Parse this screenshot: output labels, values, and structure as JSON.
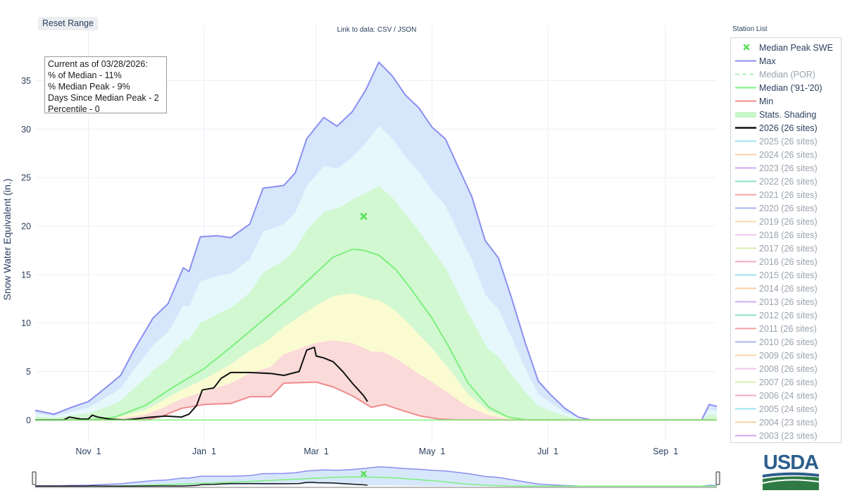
{
  "toolbar": {
    "reset_label": "Reset Range"
  },
  "data_link": "Link to data: CSV / JSON",
  "station_list_label": "Station List",
  "info_box": {
    "lines": [
      "Current as of 03/28/2026:",
      "% of Median - 11%",
      "% Median Peak - 9%",
      "Days Since Median Peak - 2",
      "Percentile - 0"
    ]
  },
  "logo_text": "USDA",
  "colors": {
    "max": "#8c8ef0",
    "median_por": "#b4ecb4",
    "median_9120": "#7cf07c",
    "min": "#f08a8a",
    "current": "#111111",
    "band_blue": "#d6e7fb",
    "band_cyan": "#e6f8fb",
    "band_green": "#d2f8d2",
    "band_yellow": "#fbfbd2",
    "band_red": "#fbdada",
    "peak_marker": "#5ae05a"
  },
  "legend": [
    {
      "label": "Median Peak SWE",
      "type": "marker",
      "color": "#5ae05a",
      "dim": false
    },
    {
      "label": "Max",
      "type": "line",
      "color": "#8c8ef0",
      "dim": false
    },
    {
      "label": "Median (POR)",
      "type": "dash",
      "color": "#b4ecb4",
      "dim": true
    },
    {
      "label": "Median ('91-'20)",
      "type": "line",
      "color": "#7cf07c",
      "dim": false
    },
    {
      "label": "Min",
      "type": "line",
      "color": "#f08a8a",
      "dim": false
    },
    {
      "label": "Stats. Shading",
      "type": "box",
      "color": "#c8f7c8",
      "dim": false
    },
    {
      "label": "2026 (26 sites)",
      "type": "bold",
      "color": "#111111",
      "dim": false
    },
    {
      "label": "2025 (26 sites)",
      "type": "line",
      "color": "#9be3f0",
      "dim": true
    },
    {
      "label": "2024 (26 sites)",
      "type": "line",
      "color": "#f7cfa6",
      "dim": true
    },
    {
      "label": "2023 (26 sites)",
      "type": "line",
      "color": "#d2a9f2",
      "dim": true
    },
    {
      "label": "2022 (26 sites)",
      "type": "line",
      "color": "#8fe0c6",
      "dim": true
    },
    {
      "label": "2021 (26 sites)",
      "type": "line",
      "color": "#f4a3a3",
      "dim": true
    },
    {
      "label": "2020 (26 sites)",
      "type": "line",
      "color": "#aab4ee",
      "dim": true
    },
    {
      "label": "2019 (26 sites)",
      "type": "line",
      "color": "#f7d9a6",
      "dim": true
    },
    {
      "label": "2018 (26 sites)",
      "type": "line",
      "color": "#f2c6ef",
      "dim": true
    },
    {
      "label": "2017 (26 sites)",
      "type": "line",
      "color": "#d9efb0",
      "dim": true
    },
    {
      "label": "2016 (26 sites)",
      "type": "line",
      "color": "#f2a9c8",
      "dim": true
    },
    {
      "label": "2015 (26 sites)",
      "type": "line",
      "color": "#9be3f0",
      "dim": true
    },
    {
      "label": "2014 (26 sites)",
      "type": "line",
      "color": "#f7cfa6",
      "dim": true
    },
    {
      "label": "2013 (26 sites)",
      "type": "line",
      "color": "#d2a9f2",
      "dim": true
    },
    {
      "label": "2012 (26 sites)",
      "type": "line",
      "color": "#8fe0c6",
      "dim": true
    },
    {
      "label": "2011 (26 sites)",
      "type": "line",
      "color": "#f4a3a3",
      "dim": true
    },
    {
      "label": "2010 (26 sites)",
      "type": "line",
      "color": "#aab4ee",
      "dim": true
    },
    {
      "label": "2009 (26 sites)",
      "type": "line",
      "color": "#f7d9a6",
      "dim": true
    },
    {
      "label": "2008 (26 sites)",
      "type": "line",
      "color": "#f2c6ef",
      "dim": true
    },
    {
      "label": "2007 (26 sites)",
      "type": "line",
      "color": "#d9efb0",
      "dim": true
    },
    {
      "label": "2006 (24 sites)",
      "type": "line",
      "color": "#f2a9c8",
      "dim": true
    },
    {
      "label": "2005 (24 sites)",
      "type": "line",
      "color": "#9be3f0",
      "dim": true
    },
    {
      "label": "2004 (23 sites)",
      "type": "line",
      "color": "#f7cfa6",
      "dim": true
    },
    {
      "label": "2003 (23 sites)",
      "type": "line",
      "color": "#d2a9f2",
      "dim": true
    }
  ],
  "chart_data": {
    "type": "area",
    "ylabel": "Snow Water Equivalent (in.)",
    "ylim": [
      -2.3,
      40.7
    ],
    "yticks": [
      0,
      5,
      10,
      15,
      20,
      25,
      30,
      35
    ],
    "x_range": [
      "2025-10-04",
      "2026-09-28"
    ],
    "xticks": [
      {
        "label": "Nov 1",
        "date": "2025-11-01"
      },
      {
        "label": "Jan 1",
        "date": "2026-01-01"
      },
      {
        "label": "Mar 1",
        "date": "2026-03-01"
      },
      {
        "label": "May 1",
        "date": "2026-05-01"
      },
      {
        "label": "Jul 1",
        "date": "2026-07-01"
      },
      {
        "label": "Sep 1",
        "date": "2026-09-01"
      }
    ],
    "grid": true,
    "legend_position": "right",
    "series": [
      {
        "name": "Max",
        "points": [
          [
            "2025-10-04",
            1.0
          ],
          [
            "2025-10-14",
            0.6
          ],
          [
            "2025-10-23",
            1.3
          ],
          [
            "2025-11-01",
            1.9
          ],
          [
            "2025-11-10",
            3.3
          ],
          [
            "2025-11-18",
            4.6
          ],
          [
            "2025-11-25",
            7.2
          ],
          [
            "2025-12-05",
            10.5
          ],
          [
            "2025-12-13",
            12.0
          ],
          [
            "2025-12-21",
            15.7
          ],
          [
            "2025-12-24",
            15.3
          ],
          [
            "2025-12-30",
            18.9
          ],
          [
            "2026-01-08",
            19.0
          ],
          [
            "2026-01-15",
            18.8
          ],
          [
            "2026-01-25",
            20.2
          ],
          [
            "2026-02-01",
            23.9
          ],
          [
            "2026-02-12",
            24.2
          ],
          [
            "2026-02-18",
            25.5
          ],
          [
            "2026-02-24",
            29.0
          ],
          [
            "2026-03-05",
            31.2
          ],
          [
            "2026-03-12",
            30.3
          ],
          [
            "2026-03-20",
            31.8
          ],
          [
            "2026-03-27",
            34.0
          ],
          [
            "2026-04-03",
            36.9
          ],
          [
            "2026-04-10",
            35.5
          ],
          [
            "2026-04-17",
            33.5
          ],
          [
            "2026-04-24",
            32.2
          ],
          [
            "2026-05-01",
            30.2
          ],
          [
            "2026-05-08",
            29.0
          ],
          [
            "2026-05-15",
            26.0
          ],
          [
            "2026-05-22",
            23.0
          ],
          [
            "2026-05-29",
            18.5
          ],
          [
            "2026-06-05",
            16.7
          ],
          [
            "2026-06-12",
            12.5
          ],
          [
            "2026-06-19",
            8.0
          ],
          [
            "2026-06-26",
            4.0
          ],
          [
            "2026-07-03",
            2.5
          ],
          [
            "2026-07-10",
            1.2
          ],
          [
            "2026-07-17",
            0.3
          ],
          [
            "2026-07-24",
            0.0
          ],
          [
            "2026-09-20",
            0.0
          ],
          [
            "2026-09-24",
            1.6
          ],
          [
            "2026-09-28",
            1.4
          ]
        ]
      },
      {
        "name": "Median ('91-'20)",
        "points": [
          [
            "2025-10-04",
            0.0
          ],
          [
            "2025-11-01",
            0.0
          ],
          [
            "2025-11-15",
            0.3
          ],
          [
            "2025-12-01",
            1.5
          ],
          [
            "2025-12-15",
            3.3
          ],
          [
            "2026-01-01",
            5.3
          ],
          [
            "2026-01-15",
            7.5
          ],
          [
            "2026-02-01",
            10.3
          ],
          [
            "2026-02-15",
            12.6
          ],
          [
            "2026-03-01",
            15.2
          ],
          [
            "2026-03-10",
            16.8
          ],
          [
            "2026-03-20",
            17.6
          ],
          [
            "2026-03-26",
            17.5
          ],
          [
            "2026-04-03",
            17.0
          ],
          [
            "2026-04-12",
            15.5
          ],
          [
            "2026-04-20",
            13.5
          ],
          [
            "2026-05-01",
            10.5
          ],
          [
            "2026-05-10",
            7.5
          ],
          [
            "2026-05-20",
            3.8
          ],
          [
            "2026-05-31",
            1.3
          ],
          [
            "2026-06-10",
            0.3
          ],
          [
            "2026-06-20",
            0.0
          ],
          [
            "2026-09-28",
            0.0
          ]
        ]
      },
      {
        "name": "Min",
        "points": [
          [
            "2025-10-04",
            0.0
          ],
          [
            "2025-12-01",
            0.0
          ],
          [
            "2025-12-10",
            0.4
          ],
          [
            "2025-12-20",
            1.2
          ],
          [
            "2026-01-01",
            1.6
          ],
          [
            "2026-01-15",
            1.7
          ],
          [
            "2026-01-25",
            2.4
          ],
          [
            "2026-02-05",
            2.4
          ],
          [
            "2026-02-12",
            3.8
          ],
          [
            "2026-03-01",
            3.9
          ],
          [
            "2026-03-10",
            3.4
          ],
          [
            "2026-03-20",
            2.5
          ],
          [
            "2026-03-30",
            1.3
          ],
          [
            "2026-04-06",
            1.6
          ],
          [
            "2026-04-15",
            1.0
          ],
          [
            "2026-04-25",
            0.4
          ],
          [
            "2026-05-05",
            0.1
          ],
          [
            "2026-05-15",
            0.0
          ],
          [
            "2026-09-28",
            0.0
          ]
        ]
      },
      {
        "name": "2026 (26 sites)",
        "points": [
          [
            "2025-10-04",
            0.0
          ],
          [
            "2025-10-19",
            0.0
          ],
          [
            "2025-10-22",
            0.3
          ],
          [
            "2025-10-28",
            0.1
          ],
          [
            "2025-11-01",
            0.1
          ],
          [
            "2025-11-03",
            0.5
          ],
          [
            "2025-11-06",
            0.3
          ],
          [
            "2025-11-12",
            0.1
          ],
          [
            "2025-11-20",
            0.0
          ],
          [
            "2025-11-25",
            0.1
          ],
          [
            "2025-12-04",
            0.3
          ],
          [
            "2025-12-12",
            0.4
          ],
          [
            "2025-12-20",
            0.3
          ],
          [
            "2025-12-24",
            0.6
          ],
          [
            "2025-12-28",
            1.5
          ],
          [
            "2025-12-31",
            3.1
          ],
          [
            "2026-01-06",
            3.3
          ],
          [
            "2026-01-10",
            4.3
          ],
          [
            "2026-01-15",
            4.9
          ],
          [
            "2026-01-25",
            4.9
          ],
          [
            "2026-02-05",
            4.8
          ],
          [
            "2026-02-12",
            4.6
          ],
          [
            "2026-02-20",
            5.0
          ],
          [
            "2026-02-24",
            7.2
          ],
          [
            "2026-02-28",
            7.5
          ],
          [
            "2026-03-01",
            6.6
          ],
          [
            "2026-03-05",
            6.4
          ],
          [
            "2026-03-10",
            6.0
          ],
          [
            "2026-03-15",
            5.0
          ],
          [
            "2026-03-20",
            3.8
          ],
          [
            "2026-03-26",
            2.5
          ],
          [
            "2026-03-28",
            1.9
          ]
        ]
      }
    ],
    "shading_bands": [
      {
        "fill": "#d6e7fb",
        "lower": "Min",
        "upper": "Max"
      },
      {
        "fill": "#e6f8fb",
        "note": "light-cyan band"
      },
      {
        "fill": "#d2f8d2",
        "note": "green band"
      },
      {
        "fill": "#fbfbd2",
        "note": "yellow band"
      },
      {
        "fill": "#fbdada",
        "note": "red band"
      }
    ],
    "median_peak_swe": {
      "date": "2026-03-26",
      "value": 21.0
    }
  }
}
